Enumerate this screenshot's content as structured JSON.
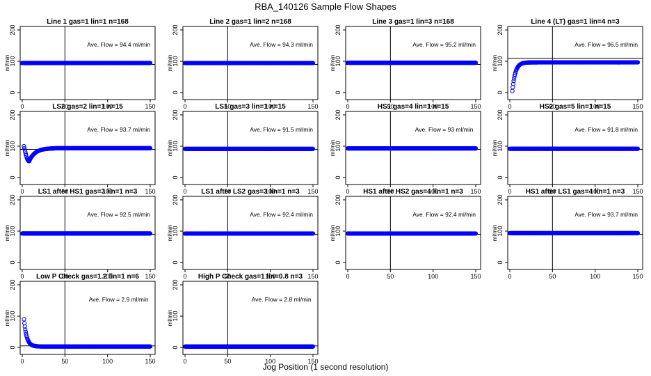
{
  "figure": {
    "title": "RBA_140126  Sample Flow Shapes",
    "xlabel": "Jog Position (1 second resolution)"
  },
  "chart_data": [
    {
      "type": "scatter",
      "title": "Line 1 gas=1 lin=1 n=168",
      "ylabel": "ml/min",
      "annotation": "Ave. Flow = 94.4  ml/min",
      "xlim": [
        0,
        150
      ],
      "ylim": [
        0,
        200
      ],
      "xticks": [
        "0",
        "50",
        "100",
        "150"
      ],
      "yticks": [
        "0",
        "100",
        "200"
      ],
      "hline": 90,
      "vline": 50,
      "series": [
        {
          "x": [
            0,
            150
          ],
          "y": [
            94.4,
            94.4
          ],
          "shape": "flat"
        }
      ]
    },
    {
      "type": "scatter",
      "title": "Line 2 gas=1 lin=2 n=168",
      "ylabel": "ml/min",
      "annotation": "Ave. Flow = 94.3  ml/min",
      "xlim": [
        0,
        150
      ],
      "ylim": [
        0,
        200
      ],
      "xticks": [
        "0",
        "50",
        "100",
        "150"
      ],
      "yticks": [
        "0",
        "100",
        "200"
      ],
      "hline": 90,
      "vline": 50,
      "series": [
        {
          "x": [
            0,
            150
          ],
          "y": [
            94.3,
            94.3
          ],
          "shape": "flat"
        }
      ]
    },
    {
      "type": "scatter",
      "title": "Line 3 gas=1 lin=3 n=168",
      "ylabel": "ml/min",
      "annotation": "Ave. Flow = 95.2  ml/min",
      "xlim": [
        0,
        150
      ],
      "ylim": [
        0,
        200
      ],
      "xticks": [
        "0",
        "50",
        "100",
        "150"
      ],
      "yticks": [
        "0",
        "100",
        "200"
      ],
      "hline": 90,
      "vline": 50,
      "series": [
        {
          "x": [
            0,
            150
          ],
          "y": [
            95.2,
            95.2
          ],
          "shape": "flat"
        }
      ]
    },
    {
      "type": "scatter",
      "title": "Line 4 (LT) gas=1 lin=4 n=3",
      "ylabel": "ml/min",
      "annotation": "Ave. Flow = 96.5  ml/min",
      "xlim": [
        0,
        150
      ],
      "ylim": [
        0,
        200
      ],
      "xticks": [
        "0",
        "50",
        "100",
        "150"
      ],
      "yticks": [
        "0",
        "100",
        "200"
      ],
      "hline": 110,
      "vline": 50,
      "series": [
        {
          "x": [
            3,
            150
          ],
          "y": [
            5,
            96.5
          ],
          "shape": "rise"
        }
      ]
    },
    {
      "type": "scatter",
      "title": "LS2 gas=2 lin=1 n=15",
      "ylabel": "ml/min",
      "annotation": "Ave. Flow = 93.7  ml/min",
      "xlim": [
        0,
        150
      ],
      "ylim": [
        0,
        200
      ],
      "xticks": [
        "0",
        "50",
        "100",
        "150"
      ],
      "yticks": [
        "0",
        "100",
        "200"
      ],
      "hline": 90,
      "vline": 50,
      "series": [
        {
          "x": [
            2,
            150
          ],
          "y": [
            100,
            93.7
          ],
          "shape": "dip"
        }
      ]
    },
    {
      "type": "scatter",
      "title": "LS1 gas=3 lin=1 n=15",
      "ylabel": "ml/min",
      "annotation": "Ave. Flow = 91.5  ml/min",
      "xlim": [
        0,
        150
      ],
      "ylim": [
        0,
        200
      ],
      "xticks": [
        "0",
        "50",
        "100",
        "150"
      ],
      "yticks": [
        "0",
        "100",
        "200"
      ],
      "hline": 90,
      "vline": 50,
      "series": [
        {
          "x": [
            0,
            150
          ],
          "y": [
            91.5,
            91.5
          ],
          "shape": "flat"
        }
      ]
    },
    {
      "type": "scatter",
      "title": "HS1 gas=4 lin=1 n=15",
      "ylabel": "ml/min",
      "annotation": "Ave. Flow = 93  ml/min",
      "xlim": [
        0,
        150
      ],
      "ylim": [
        0,
        200
      ],
      "xticks": [
        "0",
        "50",
        "100",
        "150"
      ],
      "yticks": [
        "0",
        "100",
        "200"
      ],
      "hline": 90,
      "vline": 50,
      "series": [
        {
          "x": [
            0,
            150
          ],
          "y": [
            93,
            93
          ],
          "shape": "flat"
        }
      ]
    },
    {
      "type": "scatter",
      "title": "HS2 gas=5 lin=1 n=15",
      "ylabel": "ml/min",
      "annotation": "Ave. Flow = 91.8  ml/min",
      "xlim": [
        0,
        150
      ],
      "ylim": [
        0,
        200
      ],
      "xticks": [
        "0",
        "50",
        "100",
        "150"
      ],
      "yticks": [
        "0",
        "100",
        "200"
      ],
      "hline": 90,
      "vline": 50,
      "series": [
        {
          "x": [
            0,
            150
          ],
          "y": [
            91.8,
            91.8
          ],
          "shape": "flat"
        }
      ]
    },
    {
      "type": "scatter",
      "title": "LS1 after HS1 gas=3 lin=1 n=3",
      "ylabel": "ml/min",
      "annotation": "Ave. Flow = 92.5  ml/min",
      "xlim": [
        0,
        150
      ],
      "ylim": [
        0,
        200
      ],
      "xticks": [
        "0",
        "50",
        "100",
        "150"
      ],
      "yticks": [
        "0",
        "100",
        "200"
      ],
      "hline": 90,
      "vline": 50,
      "series": [
        {
          "x": [
            0,
            150
          ],
          "y": [
            92.5,
            92.5
          ],
          "shape": "flat"
        }
      ]
    },
    {
      "type": "scatter",
      "title": "LS1 after LS2 gas=3 lin=1 n=3",
      "ylabel": "ml/min",
      "annotation": "Ave. Flow = 92.4  ml/min",
      "xlim": [
        0,
        150
      ],
      "ylim": [
        0,
        200
      ],
      "xticks": [
        "0",
        "50",
        "100",
        "150"
      ],
      "yticks": [
        "0",
        "100",
        "200"
      ],
      "hline": 90,
      "vline": 50,
      "series": [
        {
          "x": [
            0,
            150
          ],
          "y": [
            92.4,
            92.4
          ],
          "shape": "flat"
        }
      ]
    },
    {
      "type": "scatter",
      "title": "HS1 after HS2 gas=4 lin=1 n=3",
      "ylabel": "ml/min",
      "annotation": "Ave. Flow = 92.4  ml/min",
      "xlim": [
        0,
        150
      ],
      "ylim": [
        0,
        200
      ],
      "xticks": [
        "0",
        "50",
        "100",
        "150"
      ],
      "yticks": [
        "0",
        "100",
        "200"
      ],
      "hline": 90,
      "vline": 50,
      "series": [
        {
          "x": [
            0,
            150
          ],
          "y": [
            92.4,
            92.4
          ],
          "shape": "flat"
        }
      ]
    },
    {
      "type": "scatter",
      "title": "HS1 after LS1 gas=4 lin=1 n=3",
      "ylabel": "ml/min",
      "annotation": "Ave. Flow = 93.7  ml/min",
      "xlim": [
        0,
        150
      ],
      "ylim": [
        0,
        200
      ],
      "xticks": [
        "0",
        "50",
        "100",
        "150"
      ],
      "yticks": [
        "0",
        "100",
        "200"
      ],
      "hline": 90,
      "vline": 50,
      "series": [
        {
          "x": [
            0,
            150
          ],
          "y": [
            93.7,
            93.7
          ],
          "shape": "flat"
        }
      ]
    },
    {
      "type": "scatter",
      "title": "Low P Check gas=1.2 lin=1 n=6",
      "ylabel": "ml/min",
      "annotation": "Ave. Flow = 2.9  ml/min",
      "xlim": [
        0,
        150
      ],
      "ylim": [
        0,
        200
      ],
      "xticks": [
        "0",
        "50",
        "100",
        "150"
      ],
      "yticks": [
        "0",
        "100",
        "200"
      ],
      "hline": 5,
      "vline": 50,
      "series": [
        {
          "x": [
            2,
            150
          ],
          "y": [
            90,
            2.9
          ],
          "shape": "decay"
        }
      ]
    },
    {
      "type": "scatter",
      "title": "High P Check gas=1 lin=0.8 n=3",
      "ylabel": "ml/min",
      "annotation": "Ave. Flow = 2.8  ml/min",
      "xlim": [
        0,
        150
      ],
      "ylim": [
        0,
        200
      ],
      "xticks": [
        "0",
        "50",
        "100",
        "150"
      ],
      "yticks": [
        "0",
        "100",
        "200"
      ],
      "hline": 5,
      "vline": 50,
      "series": [
        {
          "x": [
            0,
            150
          ],
          "y": [
            2.8,
            2.8
          ],
          "shape": "flat"
        }
      ]
    }
  ],
  "colors": {
    "points": "#0000ff",
    "axes": "#000000"
  }
}
